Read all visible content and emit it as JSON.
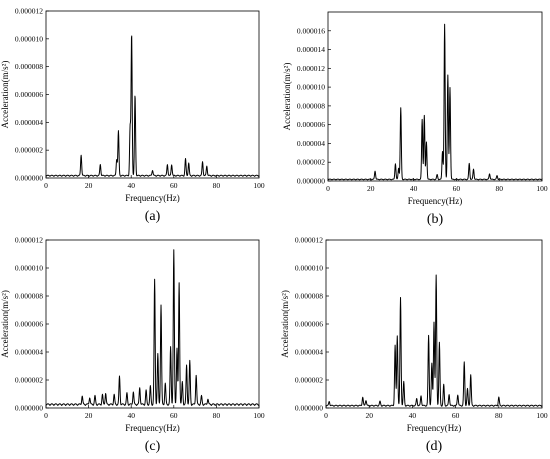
{
  "chart_data": [
    {
      "type": "line",
      "panel_label": "(a)",
      "xlabel": "Frequency(Hz)",
      "ylabel": "Acceleration(m/s²)",
      "xlim": [
        0,
        100
      ],
      "ylim": [
        0,
        1.2e-05
      ],
      "xticks": [
        0,
        20,
        40,
        60,
        80,
        100
      ],
      "yticks": [
        0,
        2e-06,
        4e-06,
        6e-06,
        8e-06,
        1e-05,
        1.2e-05
      ],
      "ytick_labels": [
        "0.000000",
        "0.000002",
        "0.000004",
        "0.000006",
        "0.000008",
        "0.000010",
        "0.000012"
      ],
      "grid": false,
      "baseline": 2e-07,
      "peaks": [
        [
          16.5,
          1.5e-06
        ],
        [
          25.5,
          8e-07
        ],
        [
          33.2,
          1.2e-06
        ],
        [
          34.0,
          3.2e-06
        ],
        [
          39.5,
          3.5e-06
        ],
        [
          40.2,
          1.02e-05
        ],
        [
          41.8,
          5.8e-06
        ],
        [
          50.0,
          4e-07
        ],
        [
          57.0,
          8e-07
        ],
        [
          59.0,
          8e-07
        ],
        [
          65.5,
          1.2e-06
        ],
        [
          67.0,
          9e-07
        ],
        [
          73.5,
          1e-06
        ],
        [
          75.5,
          7e-07
        ]
      ]
    },
    {
      "type": "line",
      "panel_label": "(b)",
      "xlabel": "Frequency(Hz)",
      "ylabel": "Acceleration(m/s²)",
      "xlim": [
        0,
        100
      ],
      "ylim": [
        0,
        1.8e-05
      ],
      "xticks": [
        0,
        20,
        40,
        60,
        80,
        100
      ],
      "yticks": [
        0,
        2e-06,
        4e-06,
        6e-06,
        8e-06,
        1e-05,
        1.2e-05,
        1.4e-05,
        1.6e-05
      ],
      "ytick_labels": [
        "0.000000",
        "0.000002",
        "0.000004",
        "0.000006",
        "0.000008",
        "0.000010",
        "0.000012",
        "0.000014",
        "0.000016"
      ],
      "grid": false,
      "baseline": 2e-07,
      "peaks": [
        [
          22.0,
          9e-07
        ],
        [
          31.5,
          1.7e-06
        ],
        [
          33.0,
          1.2e-06
        ],
        [
          34.0,
          7.6e-06
        ],
        [
          44.0,
          6.4e-06
        ],
        [
          45.0,
          6.8e-06
        ],
        [
          46.0,
          4e-06
        ],
        [
          51.0,
          5e-07
        ],
        [
          53.5,
          3e-06
        ],
        [
          54.5,
          1.65e-05
        ],
        [
          56.0,
          1.11e-05
        ],
        [
          57.0,
          9.8e-06
        ],
        [
          66.0,
          1.7e-06
        ],
        [
          68.0,
          1.1e-06
        ],
        [
          75.5,
          6e-07
        ],
        [
          79.0,
          4e-07
        ]
      ]
    },
    {
      "type": "line",
      "panel_label": "(c)",
      "xlabel": "Frequency(Hz)",
      "ylabel": "Acceleration(m/s²)",
      "xlim": [
        0,
        100
      ],
      "ylim": [
        0,
        1.2e-05
      ],
      "xticks": [
        0,
        20,
        40,
        60,
        80,
        100
      ],
      "yticks": [
        0,
        2e-06,
        4e-06,
        6e-06,
        8e-06,
        1e-05,
        1.2e-05
      ],
      "ytick_labels": [
        "0.000000",
        "0.000002",
        "0.000004",
        "0.000006",
        "0.000008",
        "0.000010",
        "0.000012"
      ],
      "grid": false,
      "baseline": 3e-07,
      "peaks": [
        [
          17.0,
          6e-07
        ],
        [
          20.5,
          5e-07
        ],
        [
          23.0,
          6e-07
        ],
        [
          26.5,
          7e-07
        ],
        [
          28.0,
          8e-07
        ],
        [
          32.0,
          7e-07
        ],
        [
          34.5,
          2e-06
        ],
        [
          38.0,
          8e-07
        ],
        [
          41.0,
          9e-07
        ],
        [
          44.0,
          1.2e-06
        ],
        [
          47.0,
          1e-06
        ],
        [
          49.0,
          1.3e-06
        ],
        [
          51.0,
          8.9e-06
        ],
        [
          52.5,
          3.6e-06
        ],
        [
          54.0,
          7.1e-06
        ],
        [
          56.0,
          1.5e-06
        ],
        [
          58.5,
          4.1e-06
        ],
        [
          60.0,
          1.1e-05
        ],
        [
          61.5,
          4e-06
        ],
        [
          62.5,
          8.7e-06
        ],
        [
          64.0,
          1.6e-06
        ],
        [
          66.0,
          2.8e-06
        ],
        [
          67.5,
          3.1e-06
        ],
        [
          70.5,
          2.1e-06
        ],
        [
          73.0,
          6e-07
        ],
        [
          76.0,
          4e-07
        ]
      ]
    },
    {
      "type": "line",
      "panel_label": "(d)",
      "xlabel": "Frequency(Hz)",
      "ylabel": "Acceleration(m/s²)",
      "xlim": [
        0,
        100
      ],
      "ylim": [
        0,
        1.2e-05
      ],
      "xticks": [
        0,
        20,
        40,
        60,
        80,
        100
      ],
      "yticks": [
        0,
        2e-06,
        4e-06,
        6e-06,
        8e-06,
        1e-05,
        1.2e-05
      ],
      "ytick_labels": [
        "0.000000",
        "0.000002",
        "0.000004",
        "0.000006",
        "0.000008",
        "0.000010",
        "0.000012"
      ],
      "grid": false,
      "baseline": 2e-07,
      "peaks": [
        [
          1.5,
          3e-07
        ],
        [
          17.0,
          6e-07
        ],
        [
          18.5,
          4e-07
        ],
        [
          25.0,
          3e-07
        ],
        [
          32.0,
          4.3e-06
        ],
        [
          33.0,
          5e-06
        ],
        [
          34.5,
          7.7e-06
        ],
        [
          36.0,
          1.7e-06
        ],
        [
          42.0,
          5e-07
        ],
        [
          44.0,
          7e-07
        ],
        [
          47.5,
          5e-06
        ],
        [
          49.0,
          3e-06
        ],
        [
          50.0,
          6e-06
        ],
        [
          51.0,
          9.3e-06
        ],
        [
          52.5,
          4.5e-06
        ],
        [
          54.5,
          1.5e-06
        ],
        [
          57.0,
          8e-07
        ],
        [
          61.0,
          8e-07
        ],
        [
          64.0,
          3.1e-06
        ],
        [
          65.5,
          1.2e-06
        ],
        [
          67.0,
          2.2e-06
        ],
        [
          80.0,
          6e-07
        ]
      ]
    }
  ]
}
